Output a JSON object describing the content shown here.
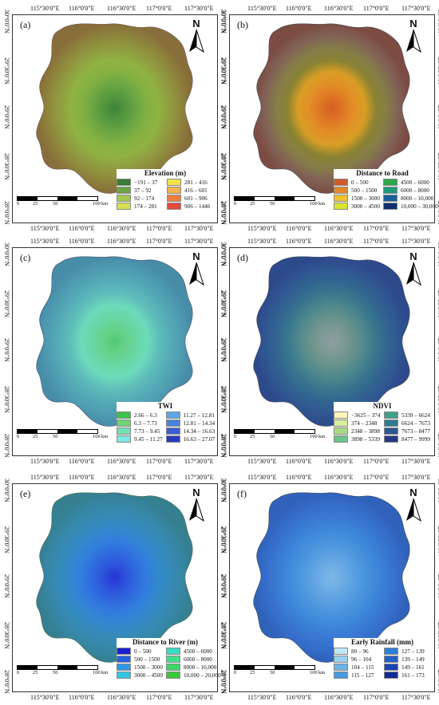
{
  "coords": {
    "lon": [
      "115°30'0\"E",
      "116°0'0\"E",
      "116°30'0\"E",
      "117°0'0\"E",
      "117°30'0\"E"
    ],
    "lat": [
      "30°0'0\"N",
      "29°30'0\"N",
      "29°0'0\"N",
      "28°30'0\"N",
      "28°0'0\"N"
    ]
  },
  "north_symbol": "N",
  "scale": {
    "ticks": [
      "0",
      "25",
      "50",
      "100"
    ],
    "unit": "km"
  },
  "panels": [
    {
      "label": "(a)",
      "legend_title": "Elevation (m)",
      "map_color": "#3f8a3a",
      "classes": [
        {
          "label": "−191 – 37",
          "color": "#3a7d34"
        },
        {
          "label": "281 – 416",
          "color": "#f2e24a"
        },
        {
          "label": "37 – 92",
          "color": "#6aa544"
        },
        {
          "label": "416 – 601",
          "color": "#f4b24a"
        },
        {
          "label": "92 – 174",
          "color": "#a3c84e"
        },
        {
          "label": "601 – 906",
          "color": "#ee7e3e"
        },
        {
          "label": "174 – 281",
          "color": "#d7e04c"
        },
        {
          "label": "906 – 1446",
          "color": "#e24b3a"
        }
      ]
    },
    {
      "label": "(b)",
      "legend_title": "Distance to Road",
      "map_color": "#d8641f",
      "classes": [
        {
          "label": "0 – 500",
          "color": "#d05a2a"
        },
        {
          "label": "4500 – 6000",
          "color": "#2aa84a"
        },
        {
          "label": "500 – 1500",
          "color": "#e5882b"
        },
        {
          "label": "6000 – 8000",
          "color": "#1f9a7a"
        },
        {
          "label": "1500 – 3000",
          "color": "#efc22e"
        },
        {
          "label": "8000 – 10,000",
          "color": "#17609a"
        },
        {
          "label": "3000 – 4500",
          "color": "#d9e42c"
        },
        {
          "label": "10,000 – 30,000",
          "color": "#0b2f6e"
        }
      ]
    },
    {
      "label": "(c)",
      "legend_title": "TWI",
      "map_color": "#5fcf98",
      "classes": [
        {
          "label": "2.66 – 6.3",
          "color": "#3cc24a"
        },
        {
          "label": "11.27 – 12.81",
          "color": "#5fa7e4"
        },
        {
          "label": "6.3 – 7.73",
          "color": "#6fd472"
        },
        {
          "label": "12.81 – 14.34",
          "color": "#4a82dc"
        },
        {
          "label": "7.73 – 9.45",
          "color": "#74e0b3"
        },
        {
          "label": "14.34 – 16.63",
          "color": "#3a5ed0"
        },
        {
          "label": "9.45 – 11.27",
          "color": "#7ee8e6"
        },
        {
          "label": "16.63 – 27.07",
          "color": "#2a3cbc"
        }
      ]
    },
    {
      "label": "(d)",
      "legend_title": "NDVI",
      "map_color": "#34568f",
      "classes": [
        {
          "label": "−3625 – 374",
          "color": "#fbf6b8"
        },
        {
          "label": "5339 – 6624",
          "color": "#3f9e8a"
        },
        {
          "label": "374 – 2348",
          "color": "#d9ee9a"
        },
        {
          "label": "6624 – 7673",
          "color": "#2e7a92"
        },
        {
          "label": "2348 – 3898",
          "color": "#a6db86"
        },
        {
          "label": "7673 – 8477",
          "color": "#2b5793"
        },
        {
          "label": "3898 – 5339",
          "color": "#6dc48a"
        },
        {
          "label": "8477 – 9999",
          "color": "#243a86"
        }
      ]
    },
    {
      "label": "(e)",
      "legend_title": "Distance to River (m)",
      "map_color": "#2f44d8",
      "classes": [
        {
          "label": "0 – 500",
          "color": "#1a1fd0"
        },
        {
          "label": "4500 – 6000",
          "color": "#38dcc0"
        },
        {
          "label": "500 – 1500",
          "color": "#2a62de"
        },
        {
          "label": "6000 – 8000",
          "color": "#3ee090"
        },
        {
          "label": "1500 – 3000",
          "color": "#2f98e6"
        },
        {
          "label": "8000 – 10,000",
          "color": "#3ed868"
        },
        {
          "label": "3000 – 4500",
          "color": "#36c4e4"
        },
        {
          "label": "10,000 – 20,000",
          "color": "#3cc83a"
        }
      ]
    },
    {
      "label": "(f)",
      "legend_title": "Early Rainfall (mm)",
      "map_color": "#4a8fdc",
      "classes": [
        {
          "label": "80 – 96",
          "color": "#bfe8f4"
        },
        {
          "label": "127 – 139",
          "color": "#2f7fd8"
        },
        {
          "label": "96 – 104",
          "color": "#9ad2ee"
        },
        {
          "label": "139 – 149",
          "color": "#2560c8"
        },
        {
          "label": "104 – 115",
          "color": "#6db3e6"
        },
        {
          "label": "149 – 161",
          "color": "#1b44b4"
        },
        {
          "label": "115 – 127",
          "color": "#4a98de"
        },
        {
          "label": "161 – 173",
          "color": "#0f2a90"
        }
      ]
    }
  ]
}
